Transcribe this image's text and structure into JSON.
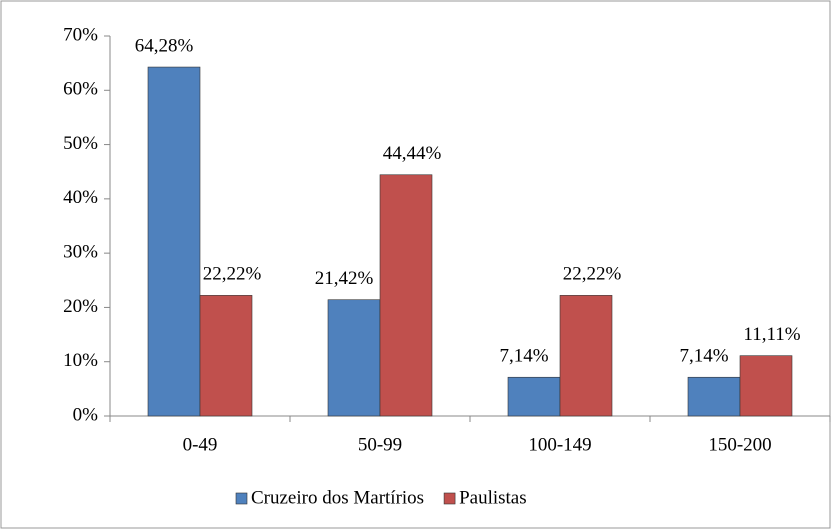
{
  "chart_data": {
    "type": "bar",
    "categories": [
      "0-49",
      "50-99",
      "100-149",
      "150-200"
    ],
    "series": [
      {
        "name": "Cruzeiro dos Martírios",
        "color": "#4f81bd",
        "values": [
          64.28,
          21.42,
          7.14,
          7.14
        ],
        "value_labels": [
          "64,28%",
          "21,42%",
          "7,14%",
          "7,14%"
        ]
      },
      {
        "name": "Paulistas",
        "color": "#c0504d",
        "values": [
          22.22,
          44.44,
          22.22,
          11.11
        ],
        "value_labels": [
          "22,22%",
          "44,44%",
          "22,22%",
          "11,11%"
        ]
      }
    ],
    "ylim": [
      0,
      70
    ],
    "yticks": [
      {
        "value": 0,
        "label": "0%"
      },
      {
        "value": 10,
        "label": "10%"
      },
      {
        "value": 20,
        "label": "20%"
      },
      {
        "value": 30,
        "label": "30%"
      },
      {
        "value": 40,
        "label": "40%"
      },
      {
        "value": 50,
        "label": "50%"
      },
      {
        "value": 60,
        "label": "60%"
      },
      {
        "value": 70,
        "label": "70%"
      }
    ],
    "grid": false,
    "legend": "bottom"
  }
}
